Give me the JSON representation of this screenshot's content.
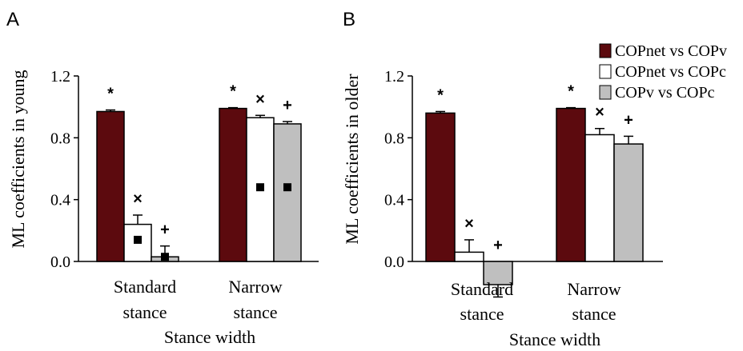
{
  "chart_data": [
    {
      "panel": "A",
      "type": "bar",
      "ylabel": "ML coefficients in young",
      "xlabel": "Stance width",
      "ylim": [
        0,
        1.2
      ],
      "yticks": [
        "0.0",
        "0.4",
        "0.8",
        "1.2"
      ],
      "categories": [
        [
          "Standard",
          "stance"
        ],
        [
          "Narrow",
          "stance"
        ]
      ],
      "series": [
        {
          "name": "COPnet vs COPv",
          "values": [
            0.97,
            0.99
          ],
          "err": [
            0.01,
            0.005
          ],
          "markers": [
            "*",
            "*"
          ]
        },
        {
          "name": "COPnet vs COPc",
          "values": [
            0.24,
            0.93
          ],
          "err": [
            0.06,
            0.015
          ],
          "markers": [
            "×",
            "×"
          ],
          "squares": [
            0.14,
            0.48
          ]
        },
        {
          "name": "COPv vs COPc",
          "values": [
            0.03,
            0.89
          ],
          "err": [
            0.07,
            0.015
          ],
          "markers": [
            "+",
            "+"
          ],
          "squares": [
            0.03,
            0.48
          ]
        }
      ]
    },
    {
      "panel": "B",
      "type": "bar",
      "ylabel": "ML coefficients in older",
      "xlabel": "Stance width",
      "ylim": [
        0,
        1.2
      ],
      "yticks": [
        "0.0",
        "0.4",
        "0.8",
        "1.2"
      ],
      "categories": [
        [
          "Standard",
          "stance"
        ],
        [
          "Narrow",
          "stance"
        ]
      ],
      "series": [
        {
          "name": "COPnet vs COPv",
          "values": [
            0.96,
            0.99
          ],
          "err": [
            0.01,
            0.005
          ],
          "markers": [
            "*",
            "*"
          ]
        },
        {
          "name": "COPnet vs COPc",
          "values": [
            0.06,
            0.82
          ],
          "err": [
            0.08,
            0.04
          ],
          "markers": [
            "×",
            "×"
          ]
        },
        {
          "name": "COPv vs COPc",
          "values": [
            -0.15,
            0.76
          ],
          "err": [
            0.08,
            0.05
          ],
          "markers": [
            "+",
            "+"
          ]
        }
      ]
    }
  ],
  "legend": {
    "placement": "top-right",
    "items": [
      {
        "label": "COPnet vs COPv",
        "color": "#5c0a0e"
      },
      {
        "label": "COPnet vs COPc",
        "color": "#ffffff"
      },
      {
        "label": "COPv vs COPc",
        "color": "#bfbfbf"
      }
    ]
  },
  "colors": {
    "series": [
      "#5c0a0e",
      "#ffffff",
      "#bfbfbf"
    ],
    "stroke": "#000000"
  }
}
